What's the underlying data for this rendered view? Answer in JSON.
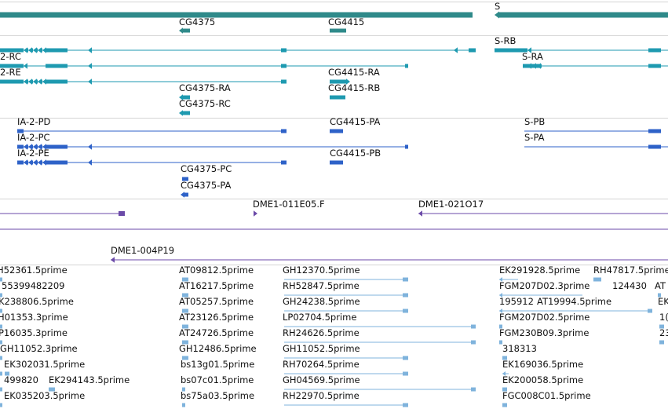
{
  "colors": {
    "gene": "#2f8a8a",
    "mrna": "#1e9ab0",
    "protein": "#2e62c8",
    "clone": "#6b4aa8",
    "est": "#7fb3dc",
    "separator": "#d4d4d4",
    "text": "#111111"
  },
  "tracks": {
    "gene": {
      "labels": [
        "S",
        "CG4375",
        "CG4415"
      ]
    },
    "transcripts": {
      "labels": [
        "S-RB",
        "2-RC",
        "S-RA",
        "2-RE",
        "CG4415-RA",
        "CG4375-RA",
        "CG4415-RB",
        "CG4375-RC"
      ]
    },
    "proteins": {
      "labels": [
        "IA-2-PD",
        "CG4415-PA",
        "S-PB",
        "IA-2-PC",
        "S-PA",
        "IA-2-PE",
        "CG4415-PB",
        "CG4375-PC",
        "CG4375-PA"
      ]
    },
    "clones": {
      "labels": [
        "DME1-011E05.F",
        "DME1-021O17",
        "DME1-004P19"
      ]
    },
    "ests": {
      "labels": [
        "H52361.5prime",
        "AT09812.5prime",
        "GH12370.5prime",
        "EK291928.5prime",
        "RH47817.5prime",
        "55399482209",
        "AT16217.5prime",
        "RH52847.5prime",
        "FGM207D02.3prime",
        "124430",
        "AT",
        "K238806.5prime",
        "AT05257.5prime",
        "GH24238.5prime",
        "195912",
        "AT19994.5prime",
        "EK",
        "H01353.3prime",
        "AT23126.5prime",
        "LP02704.5prime",
        "FGM207D02.5prime",
        "1(",
        "P16035.3prime",
        "AT24726.5prime",
        "RH24626.5prime",
        "FGM230B09.3prime",
        "23",
        "GH11052.3prime",
        "GH12486.5prime",
        "GH11052.5prime",
        "318313",
        "EK302031.5prime",
        "bs13g01.5prime",
        "RH70264.5prime",
        "EK169036.5prime",
        "499820",
        "EK294143.5prime",
        "bs07c01.5prime",
        "GH04569.5prime",
        "EK200058.5prime",
        "EK035203.5prime",
        "bs75a03.5prime",
        "RH22970.5prime",
        "FGC008C01.5prime"
      ]
    }
  }
}
